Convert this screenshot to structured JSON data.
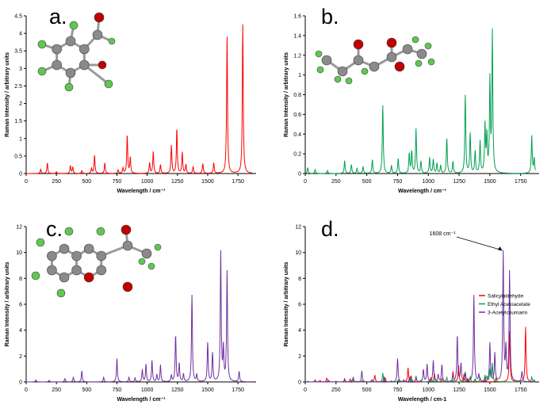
{
  "chart_data": [
    {
      "type": "line",
      "panel_label": "a.",
      "xlabel": "Wavelength / cm⁻¹",
      "ylabel": "Raman Intensity / arbitrary units",
      "xlim": [
        0,
        1900
      ],
      "ylim": [
        0,
        4.5
      ],
      "x_ticks": [
        "0",
        "250",
        "500",
        "750",
        "1000",
        "1250",
        "1500",
        "1750"
      ],
      "y_ticks": [
        "0",
        "0.5",
        "1",
        "1.5",
        "2",
        "2.5",
        "3",
        "3.5",
        "4",
        "4.5"
      ],
      "grid": false,
      "series": [
        {
          "color": "#ff0000",
          "peaks": [
            {
              "x": 120,
              "y": 0.12
            },
            {
              "x": 175,
              "y": 0.3
            },
            {
              "x": 250,
              "y": 0.05
            },
            {
              "x": 365,
              "y": 0.22
            },
            {
              "x": 385,
              "y": 0.18
            },
            {
              "x": 460,
              "y": 0.08
            },
            {
              "x": 540,
              "y": 0.14
            },
            {
              "x": 565,
              "y": 0.52
            },
            {
              "x": 650,
              "y": 0.3
            },
            {
              "x": 760,
              "y": 0.1
            },
            {
              "x": 800,
              "y": 0.15
            },
            {
              "x": 835,
              "y": 1.1
            },
            {
              "x": 860,
              "y": 0.45
            },
            {
              "x": 1020,
              "y": 0.3
            },
            {
              "x": 1050,
              "y": 0.62
            },
            {
              "x": 1110,
              "y": 0.25
            },
            {
              "x": 1200,
              "y": 0.8
            },
            {
              "x": 1245,
              "y": 1.28
            },
            {
              "x": 1290,
              "y": 0.6
            },
            {
              "x": 1320,
              "y": 0.25
            },
            {
              "x": 1380,
              "y": 0.2
            },
            {
              "x": 1460,
              "y": 0.28
            },
            {
              "x": 1550,
              "y": 0.3
            },
            {
              "x": 1660,
              "y": 3.9
            },
            {
              "x": 1790,
              "y": 4.25
            }
          ]
        }
      ]
    },
    {
      "type": "line",
      "panel_label": "b.",
      "xlabel": "Wavelength / cm⁻¹",
      "ylabel": "Raman Intensity / arbitrary units",
      "xlim": [
        0,
        1900
      ],
      "ylim": [
        0,
        1.6
      ],
      "x_ticks": [
        "0",
        "250",
        "500",
        "750",
        "1000",
        "1250",
        "1500",
        "1750"
      ],
      "y_ticks": [
        "0",
        "0.2",
        "0.4",
        "0.6",
        "0.8",
        "1",
        "1.2",
        "1.4",
        "1.6"
      ],
      "grid": false,
      "series": [
        {
          "color": "#00a050",
          "peaks": [
            {
              "x": 20,
              "y": 0.06
            },
            {
              "x": 80,
              "y": 0.04
            },
            {
              "x": 180,
              "y": 0.03
            },
            {
              "x": 320,
              "y": 0.13
            },
            {
              "x": 375,
              "y": 0.09
            },
            {
              "x": 420,
              "y": 0.05
            },
            {
              "x": 470,
              "y": 0.07
            },
            {
              "x": 545,
              "y": 0.14
            },
            {
              "x": 630,
              "y": 0.69
            },
            {
              "x": 700,
              "y": 0.08
            },
            {
              "x": 755,
              "y": 0.15
            },
            {
              "x": 845,
              "y": 0.2
            },
            {
              "x": 865,
              "y": 0.22
            },
            {
              "x": 900,
              "y": 0.45
            },
            {
              "x": 940,
              "y": 0.12
            },
            {
              "x": 1010,
              "y": 0.16
            },
            {
              "x": 1040,
              "y": 0.14
            },
            {
              "x": 1070,
              "y": 0.1
            },
            {
              "x": 1100,
              "y": 0.08
            },
            {
              "x": 1150,
              "y": 0.35
            },
            {
              "x": 1200,
              "y": 0.12
            },
            {
              "x": 1300,
              "y": 0.79
            },
            {
              "x": 1340,
              "y": 0.4
            },
            {
              "x": 1380,
              "y": 0.22
            },
            {
              "x": 1420,
              "y": 0.32
            },
            {
              "x": 1460,
              "y": 0.48
            },
            {
              "x": 1475,
              "y": 0.37
            },
            {
              "x": 1500,
              "y": 0.93
            },
            {
              "x": 1520,
              "y": 1.42
            },
            {
              "x": 1840,
              "y": 0.38
            },
            {
              "x": 1860,
              "y": 0.15
            }
          ]
        }
      ]
    },
    {
      "type": "line",
      "panel_label": "c.",
      "xlabel": "Wavelength / cm⁻¹",
      "ylabel": "Raman Intensity / arbitrary units",
      "xlim": [
        0,
        1900
      ],
      "ylim": [
        0,
        12
      ],
      "x_ticks": [
        "0",
        "250",
        "500",
        "750",
        "1000",
        "1250",
        "1500",
        "1750"
      ],
      "y_ticks": [
        "0",
        "2",
        "4",
        "6",
        "8",
        "10",
        "12"
      ],
      "grid": false,
      "series": [
        {
          "color": "#7030a0",
          "peaks": [
            {
              "x": 80,
              "y": 0.15
            },
            {
              "x": 190,
              "y": 0.12
            },
            {
              "x": 320,
              "y": 0.25
            },
            {
              "x": 390,
              "y": 0.35
            },
            {
              "x": 460,
              "y": 0.85
            },
            {
              "x": 640,
              "y": 0.35
            },
            {
              "x": 750,
              "y": 1.8
            },
            {
              "x": 850,
              "y": 0.35
            },
            {
              "x": 900,
              "y": 0.3
            },
            {
              "x": 960,
              "y": 0.95
            },
            {
              "x": 990,
              "y": 1.35
            },
            {
              "x": 1040,
              "y": 1.65
            },
            {
              "x": 1080,
              "y": 0.55
            },
            {
              "x": 1110,
              "y": 1.3
            },
            {
              "x": 1200,
              "y": 0.5
            },
            {
              "x": 1235,
              "y": 3.6
            },
            {
              "x": 1265,
              "y": 1.4
            },
            {
              "x": 1300,
              "y": 0.6
            },
            {
              "x": 1370,
              "y": 6.7
            },
            {
              "x": 1410,
              "y": 0.55
            },
            {
              "x": 1500,
              "y": 3.0
            },
            {
              "x": 1540,
              "y": 2.2
            },
            {
              "x": 1608,
              "y": 10.0
            },
            {
              "x": 1630,
              "y": 2.5
            },
            {
              "x": 1660,
              "y": 8.5
            },
            {
              "x": 1760,
              "y": 0.8
            }
          ]
        }
      ]
    },
    {
      "type": "line",
      "panel_label": "d.",
      "xlabel": "Wavelength / cm-1",
      "ylabel": "Raman Intensity / arbitrary units",
      "xlim": [
        0,
        1900
      ],
      "ylim": [
        0,
        12
      ],
      "x_ticks": [
        "0",
        "250",
        "500",
        "750",
        "1000",
        "1250",
        "1500",
        "1750"
      ],
      "y_ticks": [
        "0",
        "2",
        "4",
        "6",
        "8",
        "10",
        "12"
      ],
      "grid": false,
      "legend_position": "right",
      "annotation": {
        "text": "1608 cm⁻¹",
        "x": 1608,
        "y": 10.0
      },
      "series": [
        {
          "name": "Salicylaldehyde",
          "color": "#ff0000",
          "ref": 0
        },
        {
          "name": "Ethyl Acetoacetate",
          "color": "#00a050",
          "ref": 1
        },
        {
          "name": "3-Acetylcoumarin",
          "color": "#7030a0",
          "ref": 2
        }
      ]
    }
  ]
}
